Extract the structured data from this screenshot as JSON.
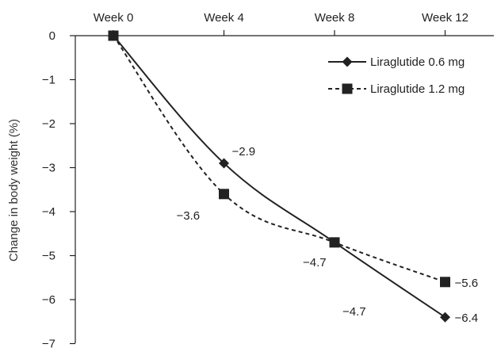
{
  "chart_data": {
    "type": "line",
    "title": "",
    "xlabel": "",
    "ylabel": "Change in body weight (%)",
    "categories": [
      "Week 0",
      "Week 4",
      "Week 8",
      "Week 12"
    ],
    "ylim": [
      -7,
      0
    ],
    "yticks": [
      "0",
      "−1",
      "−2",
      "−3",
      "−4",
      "−5",
      "−6",
      "−7"
    ],
    "x_axis_position": "top",
    "grid": false,
    "legend_position": "top-right",
    "series": [
      {
        "name": "Liraglutide 0.6 mg",
        "values": [
          0,
          -2.9,
          -4.7,
          -6.4
        ],
        "labels": [
          "",
          "−2.9",
          "−4.7",
          "−6.4"
        ],
        "marker": "diamond",
        "line_style": "solid",
        "color": "#222222"
      },
      {
        "name": "Liraglutide 1.2 mg",
        "values": [
          0,
          -3.6,
          -4.7,
          -5.6
        ],
        "labels": [
          "",
          "−3.6",
          "−4.7",
          "−5.6"
        ],
        "marker": "square",
        "line_style": "dashed",
        "color": "#222222"
      }
    ]
  }
}
